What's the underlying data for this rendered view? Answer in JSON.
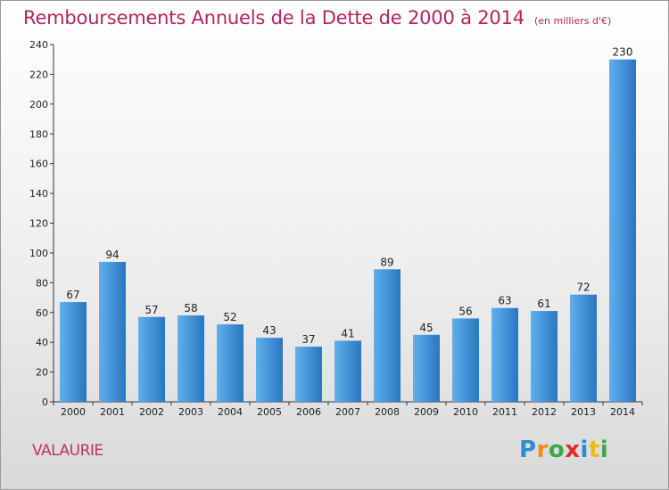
{
  "chart_data": {
    "type": "bar",
    "title": "Remboursements Annuels de la Dette de 2000 à 2014",
    "subtitle": "(en milliers d'€)",
    "categories": [
      "2000",
      "2001",
      "2002",
      "2003",
      "2004",
      "2005",
      "2006",
      "2007",
      "2008",
      "2009",
      "2010",
      "2011",
      "2012",
      "2013",
      "2014"
    ],
    "values": [
      67,
      94,
      57,
      58,
      52,
      43,
      37,
      41,
      89,
      45,
      56,
      63,
      61,
      72,
      230
    ],
    "ylim": [
      0,
      240
    ],
    "yticks": [
      0,
      20,
      40,
      60,
      80,
      100,
      120,
      140,
      160,
      180,
      200,
      220,
      240
    ],
    "xlabel": "",
    "ylabel": "",
    "grid": false,
    "bar_color": "#3a8fd8",
    "bar_color_light": "#5fb0ee",
    "bar_color_dark": "#2a76c0",
    "title_color": "#b2245f"
  },
  "footer": {
    "commune": "VALAURIE"
  },
  "logo": {
    "text": "Proxiti",
    "letters": [
      {
        "ch": "P",
        "color": "#2a8fd6"
      },
      {
        "ch": "r",
        "color": "#f08a1c"
      },
      {
        "ch": "o",
        "color": "#3aa84a"
      },
      {
        "ch": "x",
        "color": "#e02b2b"
      },
      {
        "ch": "i",
        "color": "#2a8fd6"
      },
      {
        "ch": "t",
        "color": "#f0b81c"
      },
      {
        "ch": "i",
        "color": "#3aa84a"
      }
    ]
  }
}
